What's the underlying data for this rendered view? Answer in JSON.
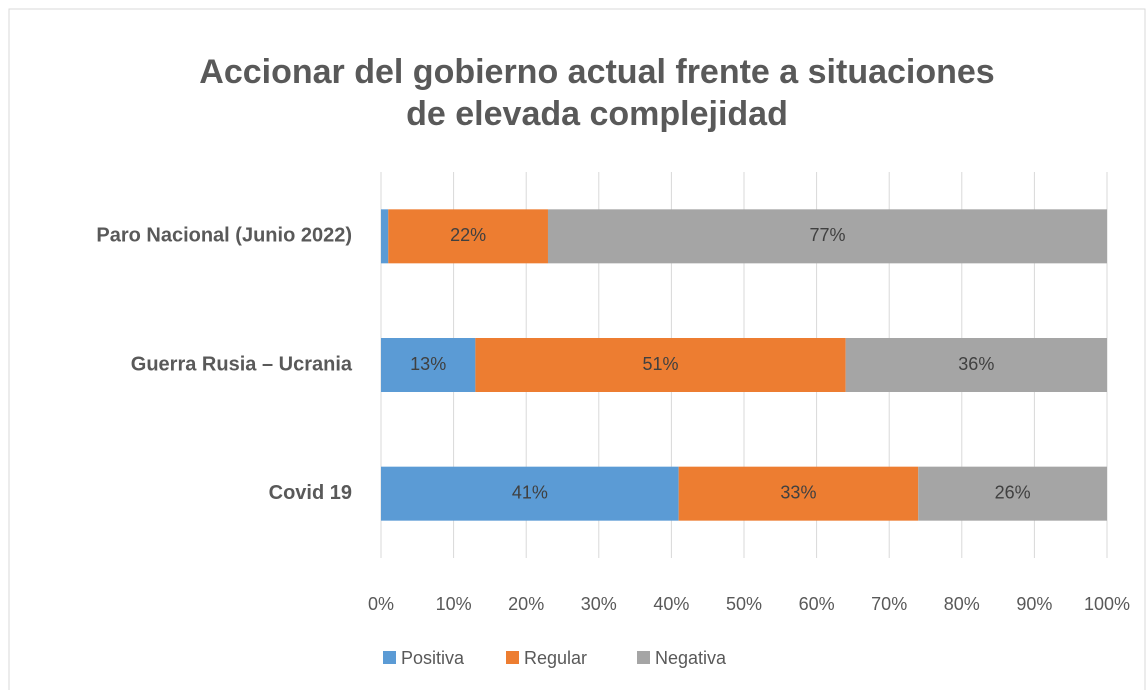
{
  "chart_data": {
    "type": "stacked-barh",
    "title": [
      "Accionar del gobierno actual frente a situaciones",
      "de elevada complejidad"
    ],
    "categories": [
      "Paro Nacional (Junio 2022)",
      "Guerra Rusia – Ucrania",
      "Covid 19"
    ],
    "series": [
      {
        "name": "Positiva",
        "color": "#5b9bd5",
        "values": [
          1,
          13,
          41
        ],
        "value_labels": [
          null,
          "13%",
          "41%"
        ]
      },
      {
        "name": "Regular",
        "color": "#ed7d31",
        "values": [
          22,
          51,
          33
        ],
        "value_labels": [
          "22%",
          "51%",
          "33%"
        ]
      },
      {
        "name": "Negativa",
        "color": "#a5a5a5",
        "values": [
          77,
          36,
          26
        ],
        "value_labels": [
          "77%",
          "36%",
          "26%"
        ]
      }
    ],
    "xlim": [
      0,
      100
    ],
    "xticks": [
      {
        "value": 0,
        "label": "0%"
      },
      {
        "value": 10,
        "label": "10%"
      },
      {
        "value": 20,
        "label": "20%"
      },
      {
        "value": 30,
        "label": "30%"
      },
      {
        "value": 40,
        "label": "40%"
      },
      {
        "value": 50,
        "label": "50%"
      },
      {
        "value": 60,
        "label": "60%"
      },
      {
        "value": 70,
        "label": "70%"
      },
      {
        "value": 80,
        "label": "80%"
      },
      {
        "value": 90,
        "label": "90%"
      },
      {
        "value": 100,
        "label": "100%"
      }
    ],
    "grid": true,
    "legend": "bottom"
  }
}
